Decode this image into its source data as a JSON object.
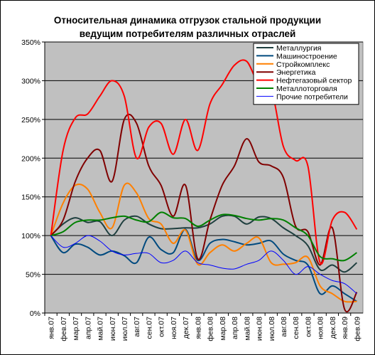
{
  "chart_data": {
    "type": "line",
    "title_line1": "Относительная динамика отгрузок стальной продукции",
    "title_line2": "ведущим потребителям различных отраслей",
    "xlabel": "",
    "ylabel": "",
    "ylim": [
      0,
      350
    ],
    "y_ticks": [
      "0%",
      "50%",
      "100%",
      "150%",
      "200%",
      "250%",
      "300%",
      "350%"
    ],
    "grid": true,
    "legend_position": "top-right",
    "x": [
      "янв.07",
      "фев.07",
      "мар.07",
      "апр.07",
      "май.07",
      "июн.07",
      "июл.07",
      "авг.07",
      "сен.07",
      "окт.07",
      "ноя.07",
      "дек.07",
      "янв.08",
      "фев.08",
      "мар.08",
      "апр.08",
      "май.08",
      "июн.08",
      "июл.08",
      "авг.08",
      "сен.08",
      "окт.08",
      "ноя.08",
      "дек.08",
      "янв.09",
      "фев.09"
    ],
    "series": [
      {
        "name": "Металлургия",
        "color": "#1f3f3f",
        "values": [
          100,
          115,
          123,
          117,
          118,
          100,
          120,
          125,
          115,
          109,
          109,
          110,
          110,
          115,
          125,
          125,
          115,
          124,
          122,
          110,
          100,
          87,
          56,
          62,
          53,
          65
        ]
      },
      {
        "name": "Машиностроение",
        "color": "#004a7f",
        "values": [
          100,
          78,
          89,
          85,
          75,
          80,
          74,
          65,
          98,
          82,
          78,
          108,
          68,
          90,
          95,
          92,
          88,
          90,
          93,
          76,
          68,
          62,
          25,
          35,
          25,
          15
        ]
      },
      {
        "name": "Стройкомплекс",
        "color": "#ff8000",
        "values": [
          100,
          142,
          165,
          160,
          130,
          110,
          165,
          155,
          122,
          115,
          90,
          107,
          63,
          78,
          88,
          80,
          90,
          97,
          65,
          63,
          65,
          72,
          35,
          25,
          15,
          15
        ]
      },
      {
        "name": "Энергетика",
        "color": "#800000",
        "values": [
          100,
          120,
          170,
          200,
          210,
          170,
          250,
          245,
          190,
          165,
          125,
          165,
          70,
          120,
          165,
          190,
          225,
          195,
          190,
          175,
          112,
          105,
          62,
          110,
          5,
          27
        ]
      },
      {
        "name": "Нефтегазовый сектор",
        "color": "#ff0000",
        "values": [
          100,
          210,
          252,
          257,
          280,
          300,
          280,
          200,
          240,
          245,
          205,
          250,
          210,
          270,
          295,
          320,
          325,
          295,
          290,
          215,
          197,
          190,
          65,
          120,
          130,
          108
        ]
      },
      {
        "name": "Металлоторговля",
        "color": "#008000",
        "values": [
          100,
          105,
          117,
          120,
          120,
          123,
          125,
          120,
          118,
          130,
          123,
          122,
          112,
          120,
          127,
          126,
          122,
          120,
          122,
          120,
          110,
          100,
          73,
          70,
          68,
          78
        ]
      },
      {
        "name": "Прочие потребители",
        "color": "#0000ff",
        "values": [
          100,
          85,
          90,
          100,
          93,
          80,
          75,
          77,
          77,
          65,
          68,
          80,
          65,
          62,
          58,
          57,
          63,
          68,
          80,
          68,
          50,
          60,
          50,
          42,
          38,
          25
        ]
      }
    ]
  }
}
